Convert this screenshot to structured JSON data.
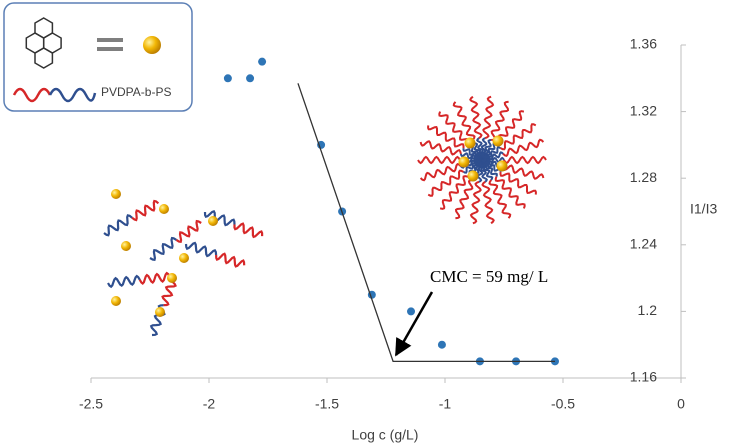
{
  "chart_data": {
    "type": "scatter",
    "xlabel": "Log c (g/L)",
    "ylabel": "I1/I3",
    "legend_label": "PVDPA-b-PS",
    "annotation": "CMC = 59 mg/ L",
    "xlim": [
      -2.5,
      0
    ],
    "xticks": [
      -2.5,
      -2,
      -1.5,
      -1,
      -0.5,
      0
    ],
    "ylim": [
      1.16,
      1.36
    ],
    "yticks": [
      1.16,
      1.2,
      1.24,
      1.28,
      1.32,
      1.36
    ],
    "series": [
      {
        "type": "scatter",
        "color": "#2e75b6",
        "x": [
          -1.92,
          -1.826,
          -1.775,
          -1.525,
          -1.436,
          -1.31,
          -1.144,
          -1.013,
          -0.852,
          -0.699,
          -0.534
        ],
        "values": [
          1.34,
          1.34,
          1.35,
          1.3,
          1.26,
          1.21,
          1.2,
          1.18,
          1.17,
          1.17,
          1.17
        ]
      },
      {
        "type": "line",
        "color": "#333333",
        "x": [
          -1.623,
          -1.22,
          -0.534
        ],
        "values": [
          1.337,
          1.17,
          1.17
        ]
      }
    ]
  }
}
